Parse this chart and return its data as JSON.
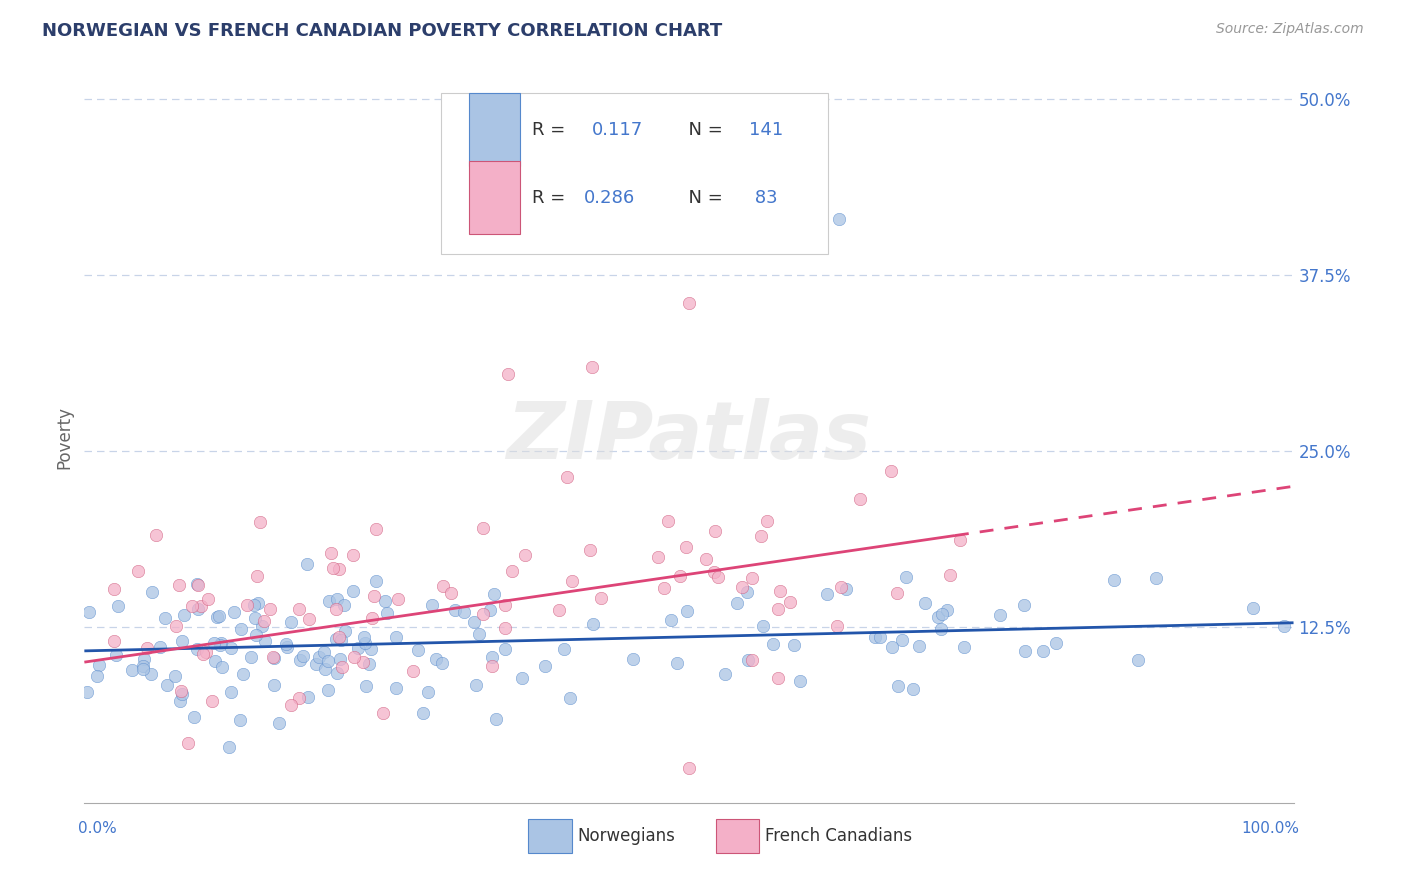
{
  "title": "NORWEGIAN VS FRENCH CANADIAN POVERTY CORRELATION CHART",
  "source": "Source: ZipAtlas.com",
  "ylabel": "Poverty",
  "xlim": [
    0.0,
    1.0
  ],
  "ylim": [
    0.0,
    0.52
  ],
  "norwegian_color": "#aac4e4",
  "norwegian_edge_color": "#5588cc",
  "french_color": "#f4b0c8",
  "french_edge_color": "#cc5577",
  "trend_norwegian_color": "#2255aa",
  "trend_french_color": "#dd4477",
  "legend_R_norwegian": "0.117",
  "legend_N_norwegian": "141",
  "legend_R_french": "0.286",
  "legend_N_french": "83",
  "watermark": "ZIPatlas",
  "background_color": "#ffffff",
  "grid_color": "#c8d4e8",
  "title_color": "#2c3e6b",
  "axis_label_color": "#666666",
  "ytick_color": "#4477cc",
  "ytick_positions": [
    0.125,
    0.25,
    0.375,
    0.5
  ],
  "ytick_labels": [
    "12.5%",
    "25.0%",
    "37.5%",
    "50.0%"
  ],
  "nor_trend_x0": 0.0,
  "nor_trend_y0": 0.108,
  "nor_trend_x1": 1.0,
  "nor_trend_y1": 0.128,
  "fr_trend_x0": 0.0,
  "fr_trend_y0": 0.1,
  "fr_trend_x1": 1.0,
  "fr_trend_y1": 0.225,
  "fr_trend_dashed_x0": 0.72,
  "fr_trend_dashed_x1": 1.02,
  "marker_size": 80,
  "marker_alpha": 0.75
}
